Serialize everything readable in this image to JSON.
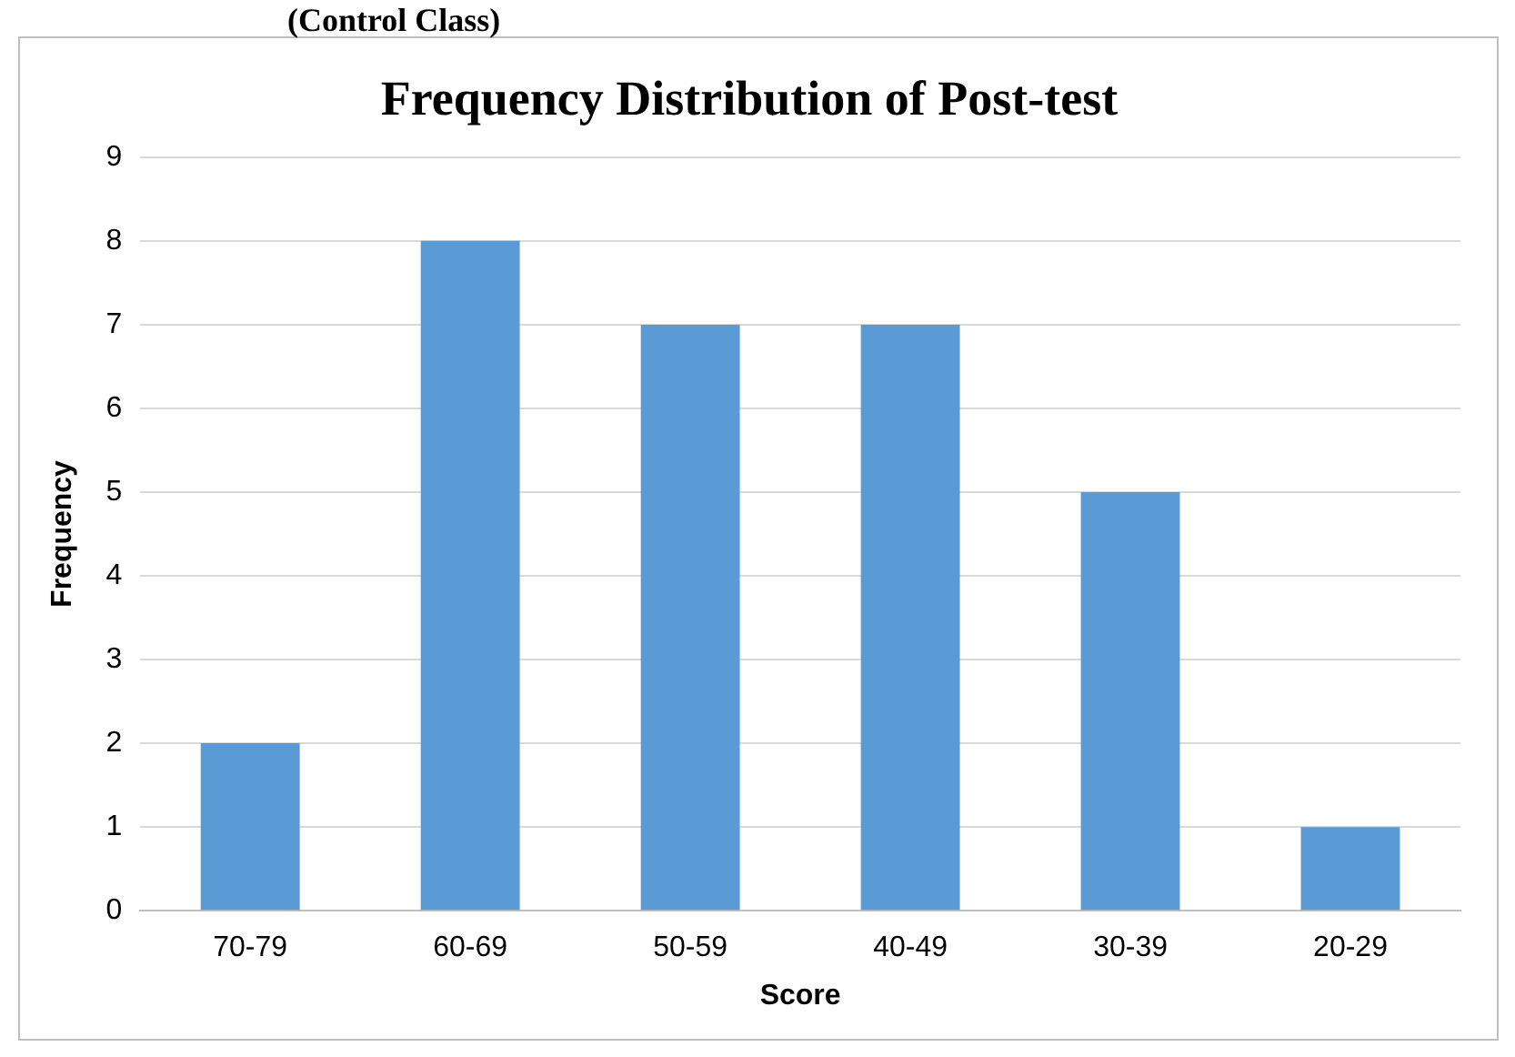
{
  "chart_data": {
    "type": "bar",
    "title": "Frequency Distribution of Post-test",
    "annotations": [
      "(Control Class)"
    ],
    "xlabel": "Score",
    "ylabel": "Frequency",
    "categories": [
      "70-79",
      "60-69",
      "50-59",
      "40-49",
      "30-39",
      "20-29"
    ],
    "values": [
      2,
      8,
      7,
      7,
      5,
      1
    ],
    "color": "#5b9bd5",
    "ylim": [
      0,
      9
    ],
    "yticks": [
      0,
      1,
      2,
      3,
      4,
      5,
      6,
      7,
      8,
      9
    ],
    "grid": "y",
    "legend": false
  }
}
